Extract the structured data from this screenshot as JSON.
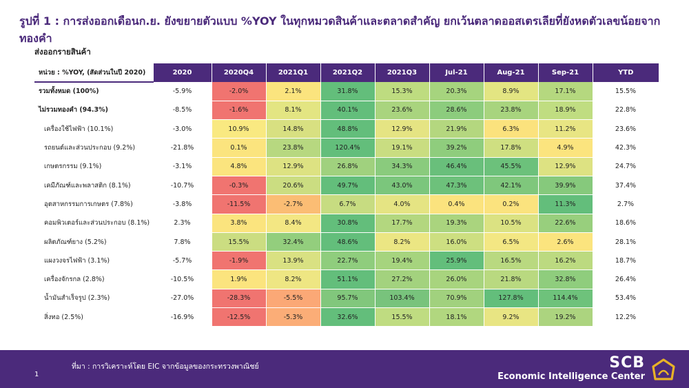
{
  "title": "รูปที่ 1 : การส่งออกเดือนก.ย. ยังขยายตัวแบบ %YOY ในทุกหมวดสินค้าและตลาดสำคัญ ยกเว้นตลาดออสเตรเลียที่ยังหดตัวเลขน้อยจากทองคำ",
  "subtitle": "ส่งออกรายสินค้า",
  "table": {
    "unit_label": "หน่วย : %YOY, (สัดส่วนในปี 2020)",
    "columns": [
      "2020",
      "2020Q4",
      "2021Q1",
      "2021Q2",
      "2021Q3",
      "Jul-21",
      "Aug-21",
      "Sep-21",
      "YTD"
    ],
    "rows": [
      {
        "label": "รวมทั้งหมด (100%)",
        "bold": true,
        "values": [
          "-5.9%",
          "-2.0%",
          "2.1%",
          "31.8%",
          "15.3%",
          "20.3%",
          "8.9%",
          "17.1%",
          "15.5%"
        ],
        "colors": [
          "",
          "#f07470",
          "#fbe47e",
          "#63be7b",
          "#bedc80",
          "#a6d47e",
          "#e3e582",
          "#b5d87f",
          ""
        ]
      },
      {
        "label": "ไม่รวมทองคำ (94.3%)",
        "bold": true,
        "values": [
          "-8.5%",
          "-1.6%",
          "8.1%",
          "40.1%",
          "23.6%",
          "28.6%",
          "23.8%",
          "18.9%",
          "22.8%"
        ],
        "colors": [
          "",
          "#f07470",
          "#e3e582",
          "#63be7b",
          "#a9d47e",
          "#8ccc7d",
          "#a8d47e",
          "#c0dd81",
          ""
        ]
      },
      {
        "label": "เครื่องใช้ไฟฟ้า (10.1%)",
        "bold": false,
        "values": [
          "-3.0%",
          "10.9%",
          "14.8%",
          "48.8%",
          "12.9%",
          "21.9%",
          "6.3%",
          "11.2%",
          "23.6%"
        ],
        "colors": [
          "",
          "#f9e981",
          "#d8e081",
          "#63be7b",
          "#e5e483",
          "#b4d77f",
          "#fbe27d",
          "#e8e583",
          ""
        ]
      },
      {
        "label": "รถยนต์และส่วนประกอบ (9.2%)",
        "bold": false,
        "values": [
          "-21.8%",
          "0.1%",
          "23.8%",
          "120.4%",
          "19.1%",
          "39.2%",
          "17.8%",
          "4.9%",
          "42.3%"
        ],
        "colors": [
          "",
          "#fbe47e",
          "#b7d880",
          "#63be7b",
          "#c9dd81",
          "#8fcd7d",
          "#cfdf81",
          "#fbe47e",
          ""
        ]
      },
      {
        "label": "เกษตรกรรม (9.1%)",
        "bold": false,
        "values": [
          "-3.1%",
          "4.8%",
          "12.9%",
          "26.8%",
          "34.3%",
          "46.4%",
          "45.5%",
          "12.9%",
          "24.7%"
        ],
        "colors": [
          "",
          "#fbe47e",
          "#dde282",
          "#a0d17e",
          "#8acb7d",
          "#69bf7b",
          "#6cc17b",
          "#dde282",
          ""
        ]
      },
      {
        "label": "เคมีภัณฑ์และพลาสติก (8.1%)",
        "bold": false,
        "values": [
          "-10.7%",
          "-0.3%",
          "20.6%",
          "49.7%",
          "43.0%",
          "47.3%",
          "42.1%",
          "39.9%",
          "37.4%"
        ],
        "colors": [
          "",
          "#f07470",
          "#cbdd81",
          "#63be7b",
          "#7bc67c",
          "#6dc17b",
          "#7fc77c",
          "#86c97c",
          ""
        ]
      },
      {
        "label": "อุตสาหกรรมการเกษตร (7.8%)",
        "bold": false,
        "values": [
          "-3.8%",
          "-11.5%",
          "-2.7%",
          "6.7%",
          "4.0%",
          "0.4%",
          "0.2%",
          "11.3%",
          "2.7%"
        ],
        "colors": [
          "",
          "#f07470",
          "#fbbd74",
          "#c7dc81",
          "#e5e483",
          "#fbe37e",
          "#fbe37e",
          "#63be7b",
          ""
        ]
      },
      {
        "label": "คอมพิวเตอร์และส่วนประกอบ (8.1%)",
        "bold": false,
        "values": [
          "2.3%",
          "3.8%",
          "8.4%",
          "30.8%",
          "17.7%",
          "19.3%",
          "10.5%",
          "22.6%",
          "18.6%"
        ],
        "colors": [
          "",
          "#fbe47e",
          "#f3e783",
          "#63be7b",
          "#b3d77f",
          "#aad47e",
          "#dbe282",
          "#98cf7d",
          ""
        ]
      },
      {
        "label": "ผลิตภัณฑ์ยาง (5.2%)",
        "bold": false,
        "values": [
          "7.8%",
          "15.5%",
          "32.4%",
          "48.6%",
          "8.2%",
          "16.0%",
          "6.5%",
          "2.6%",
          "28.1%"
        ],
        "colors": [
          "",
          "#cbdd81",
          "#93ce7d",
          "#63be7b",
          "#ebe683",
          "#cddf81",
          "#f3e783",
          "#fbe47e",
          ""
        ]
      },
      {
        "label": "แผงวงจรไฟฟ้า (3.1%)",
        "bold": false,
        "values": [
          "-5.7%",
          "-1.9%",
          "13.9%",
          "22.7%",
          "19.4%",
          "25.9%",
          "16.5%",
          "16.2%",
          "18.7%"
        ],
        "colors": [
          "",
          "#f07470",
          "#d9e182",
          "#8fcd7d",
          "#a6d47e",
          "#63be7b",
          "#b9d980",
          "#bcda80",
          ""
        ]
      },
      {
        "label": "เครื่องจักรกล (2.8%)",
        "bold": false,
        "values": [
          "-10.5%",
          "1.9%",
          "8.2%",
          "51.1%",
          "27.2%",
          "26.0%",
          "21.8%",
          "32.8%",
          "26.4%"
        ],
        "colors": [
          "",
          "#fbe47e",
          "#eee683",
          "#63be7b",
          "#a3d27e",
          "#a8d47e",
          "#b9d980",
          "#8fcd7d",
          ""
        ]
      },
      {
        "label": "น้ำมันสำเร็จรูป (2.3%)",
        "bold": false,
        "values": [
          "-27.0%",
          "-28.3%",
          "-5.5%",
          "95.7%",
          "103.4%",
          "70.9%",
          "127.8%",
          "114.4%",
          "53.4%"
        ],
        "colors": [
          "",
          "#f07470",
          "#fba876",
          "#81c77c",
          "#78c37c",
          "#a1d17e",
          "#63be7b",
          "#6ec27b",
          ""
        ]
      },
      {
        "label": "สิ่งทอ (2.5%)",
        "bold": false,
        "values": [
          "-16.9%",
          "-12.5%",
          "-5.3%",
          "32.6%",
          "15.5%",
          "18.1%",
          "9.2%",
          "19.2%",
          "12.2%"
        ],
        "colors": [
          "",
          "#f07470",
          "#fbad77",
          "#63be7b",
          "#bfdc81",
          "#b1d77f",
          "#e8e583",
          "#acd47f",
          ""
        ]
      }
    ]
  },
  "footer": {
    "page_number": "1",
    "source": "ที่มา : การวิเคราะห์โดย EIC จากข้อมูลของกระทรวงพาณิชย์",
    "brand_name": "SCB",
    "brand_unit": "Economic Intelligence Center"
  },
  "colors": {
    "brand_purple": "#4b2a7b",
    "logo_gold": "#e8b227"
  },
  "icons": {
    "logo": "scb-logo-icon"
  }
}
